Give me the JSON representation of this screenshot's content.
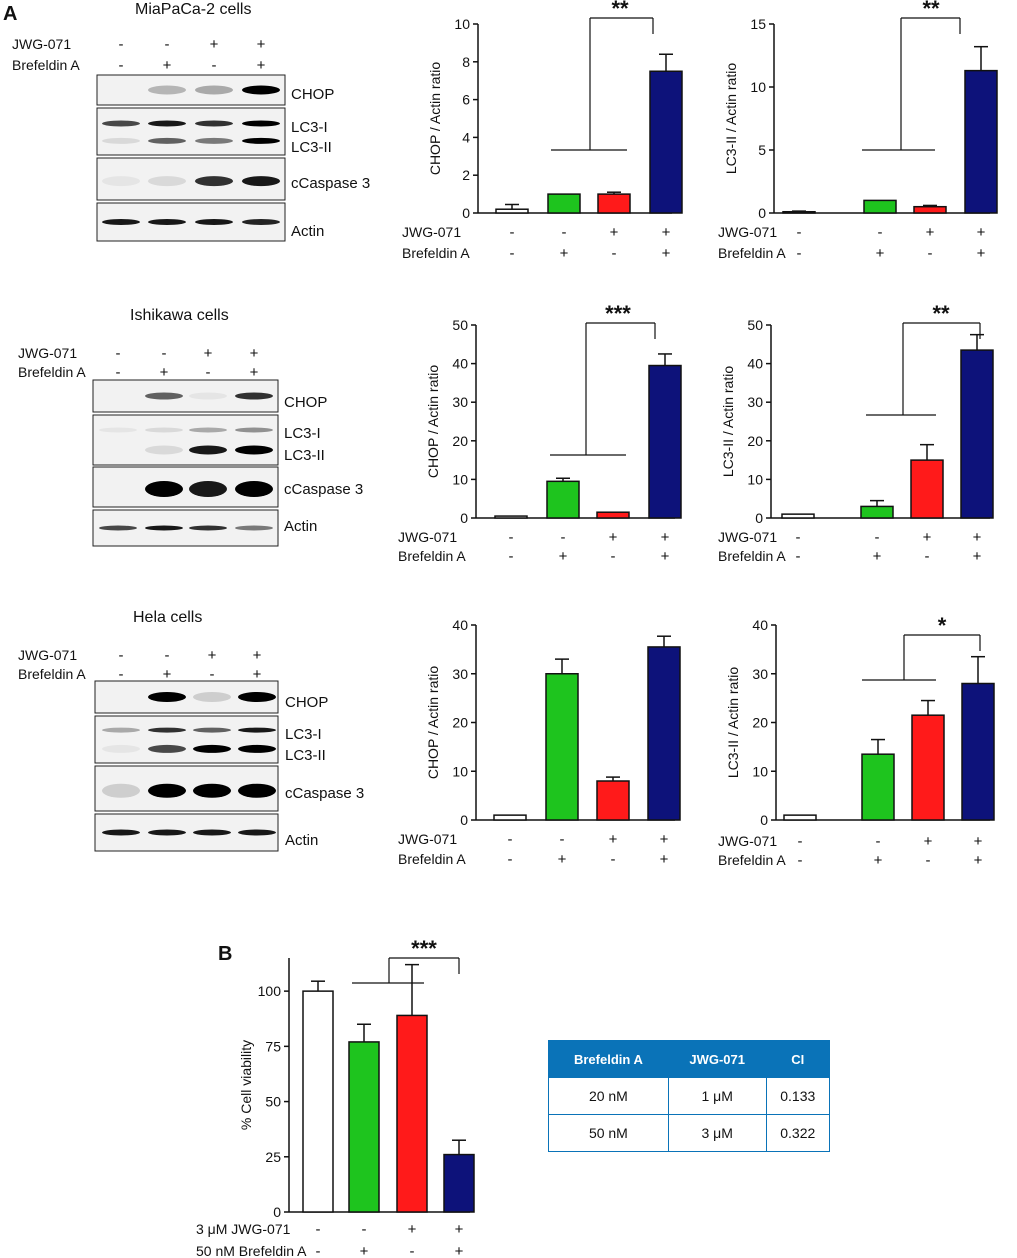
{
  "panel_labels": {
    "a": "A",
    "b": "B"
  },
  "colors": {
    "white": "#ffffff",
    "green": "#1ec41e",
    "red": "#ff1a1a",
    "navy": "#0d127a",
    "table_header": "#0a73b8"
  },
  "blots": [
    {
      "title": "MiaPaCa-2 cells",
      "treatments": [
        {
          "label": "JWG-071",
          "signs": [
            "-",
            "-",
            "+",
            "+"
          ]
        },
        {
          "label": "Brefeldin A",
          "signs": [
            "-",
            "+",
            "-",
            "+"
          ]
        }
      ],
      "bands": [
        "CHOP",
        "LC3-I",
        "LC3-II",
        "cCaspase 3",
        "Actin"
      ]
    },
    {
      "title": "Ishikawa cells",
      "treatments": [
        {
          "label": "JWG-071",
          "signs": [
            "-",
            "-",
            "+",
            "+"
          ]
        },
        {
          "label": "Brefeldin A",
          "signs": [
            "-",
            "+",
            "-",
            "+"
          ]
        }
      ],
      "bands": [
        "CHOP",
        "LC3-I",
        "LC3-II",
        "cCaspase 3",
        "Actin"
      ]
    },
    {
      "title": "Hela cells",
      "treatments": [
        {
          "label": "JWG-071",
          "signs": [
            "-",
            "-",
            "+",
            "+"
          ]
        },
        {
          "label": "Brefeldin A",
          "signs": [
            "-",
            "+",
            "-",
            "+"
          ]
        }
      ],
      "bands": [
        "CHOP",
        "LC3-I",
        "LC3-II",
        "cCaspase 3",
        "Actin"
      ]
    }
  ],
  "chart_data": [
    {
      "type": "bar",
      "ylabel": "CHOP / Actin ratio",
      "ylim": [
        0,
        10
      ],
      "yticks": [
        0,
        2,
        4,
        6,
        8,
        10
      ],
      "values": [
        0.2,
        1.0,
        1.0,
        7.5
      ],
      "errors": [
        0.25,
        0.0,
        0.1,
        0.9
      ],
      "treatments": [
        {
          "label": "JWG-071",
          "signs": [
            "-",
            "-",
            "+",
            "+"
          ]
        },
        {
          "label": "Brefeldin A",
          "signs": [
            "-",
            "+",
            "-",
            "+"
          ]
        }
      ],
      "significance": "**"
    },
    {
      "type": "bar",
      "ylabel": "LC3-II / Actin ratio",
      "ylim": [
        0,
        15
      ],
      "yticks": [
        0,
        5,
        10,
        15
      ],
      "values": [
        0.1,
        1.0,
        0.5,
        11.3
      ],
      "errors": [
        0.05,
        0.0,
        0.1,
        1.9
      ],
      "treatments": [
        {
          "label": "JWG-071",
          "signs": [
            "-",
            "-",
            "+",
            "+"
          ]
        },
        {
          "label": "Brefeldin A",
          "signs": [
            "-",
            "+",
            "-",
            "+"
          ]
        }
      ],
      "significance": "**"
    },
    {
      "type": "bar",
      "ylabel": "CHOP / Actin ratio",
      "ylim": [
        0,
        50
      ],
      "yticks": [
        0,
        10,
        20,
        30,
        40,
        50
      ],
      "values": [
        0.5,
        9.5,
        1.5,
        39.5
      ],
      "errors": [
        0.0,
        0.8,
        0.0,
        3.0
      ],
      "treatments": [
        {
          "label": "JWG-071",
          "signs": [
            "-",
            "-",
            "+",
            "+"
          ]
        },
        {
          "label": "Brefeldin A",
          "signs": [
            "-",
            "+",
            "-",
            "+"
          ]
        }
      ],
      "significance": "***"
    },
    {
      "type": "bar",
      "ylabel": "LC3-II / Actin ratio",
      "ylim": [
        0,
        50
      ],
      "yticks": [
        0,
        10,
        20,
        30,
        40,
        50
      ],
      "values": [
        1.0,
        3.0,
        15.0,
        43.5
      ],
      "errors": [
        0.0,
        1.5,
        4.0,
        4.0
      ],
      "treatments": [
        {
          "label": "JWG-071",
          "signs": [
            "-",
            "-",
            "+",
            "+"
          ]
        },
        {
          "label": "Brefeldin A",
          "signs": [
            "-",
            "+",
            "-",
            "+"
          ]
        }
      ],
      "significance": "**"
    },
    {
      "type": "bar",
      "ylabel": "CHOP / Actin ratio",
      "ylim": [
        0,
        40
      ],
      "yticks": [
        0,
        10,
        20,
        30,
        40
      ],
      "values": [
        1.0,
        30.0,
        8.0,
        35.5
      ],
      "errors": [
        0.0,
        3.0,
        0.8,
        2.2
      ],
      "treatments": [
        {
          "label": "JWG-071",
          "signs": [
            "-",
            "-",
            "+",
            "+"
          ]
        },
        {
          "label": "Brefeldin A",
          "signs": [
            "-",
            "+",
            "-",
            "+"
          ]
        }
      ],
      "significance": ""
    },
    {
      "type": "bar",
      "ylabel": "LC3-II / Actin ratio",
      "ylim": [
        0,
        40
      ],
      "yticks": [
        0,
        10,
        20,
        30,
        40
      ],
      "values": [
        1.0,
        13.5,
        21.5,
        28.0
      ],
      "errors": [
        0.0,
        3.0,
        3.0,
        5.5
      ],
      "treatments": [
        {
          "label": "JWG-071",
          "signs": [
            "-",
            "-",
            "+",
            "+"
          ]
        },
        {
          "label": "Brefeldin A",
          "signs": [
            "-",
            "+",
            "-",
            "+"
          ]
        }
      ],
      "significance": "*"
    },
    {
      "type": "bar",
      "ylabel": "% Cell viability",
      "ylim": [
        0,
        115
      ],
      "yticks": [
        0,
        25,
        50,
        75,
        100
      ],
      "values": [
        100,
        77,
        89,
        26
      ],
      "errors": [
        4.5,
        8,
        23,
        6.5
      ],
      "treatments": [
        {
          "label": "3 μM JWG-071",
          "signs": [
            "-",
            "-",
            "+",
            "+"
          ]
        },
        {
          "label": "50 nM Brefeldin A",
          "signs": [
            "-",
            "+",
            "-",
            "+"
          ]
        }
      ],
      "significance": "***"
    }
  ],
  "ci_table": {
    "headers": [
      "Brefeldin A",
      "JWG-071",
      "CI"
    ],
    "rows": [
      [
        "20 nM",
        "1 μM",
        "0.133"
      ],
      [
        "50 nM",
        "3 μM",
        "0.322"
      ]
    ]
  }
}
